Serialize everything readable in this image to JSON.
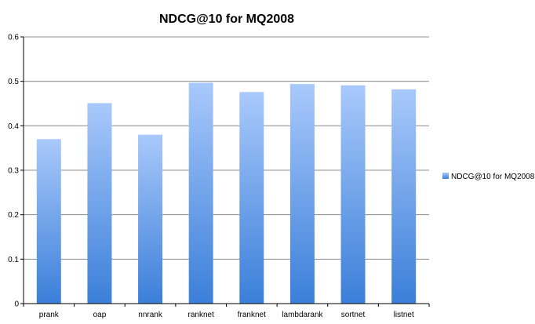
{
  "chart_data": {
    "type": "bar",
    "title": "NDCG@10 for MQ2008",
    "categories": [
      "prank",
      "oap",
      "nnrank",
      "ranknet",
      "franknet",
      "lambdarank",
      "sortnet",
      "listnet"
    ],
    "series": [
      {
        "name": "NDCG@10 for MQ2008",
        "values": [
          0.37,
          0.451,
          0.38,
          0.497,
          0.476,
          0.494,
          0.491,
          0.482
        ]
      }
    ],
    "ylim": [
      0,
      0.6
    ],
    "yticks": [
      "0",
      "0.1",
      "0.2",
      "0.3",
      "0.4",
      "0.5",
      "0.6"
    ],
    "grid": true,
    "legend_position": "right",
    "colors": {
      "bar_top": "#a9c9fb",
      "bar_bottom": "#3b7fd9",
      "gridline": "#8c8c8c",
      "axis": "#000000"
    }
  }
}
